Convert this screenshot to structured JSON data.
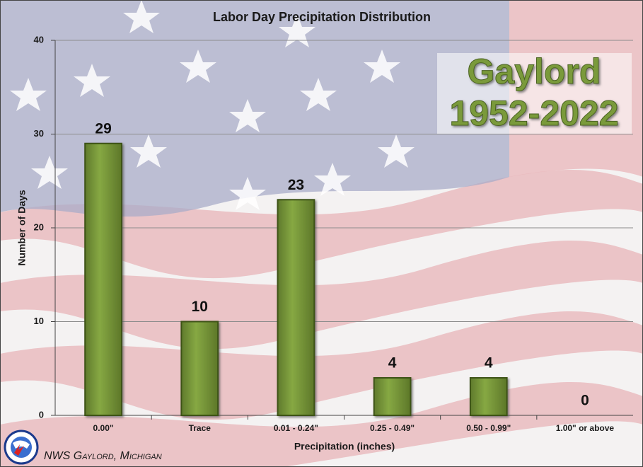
{
  "chart_data": {
    "type": "bar",
    "title": "Labor Day Precipitation Distribution",
    "x_label": "Precipitation (inches)",
    "y_label": "Number of Days",
    "categories": [
      "0.00\"",
      "Trace",
      "0.01 - 0.24\"",
      "0.25 - 0.49\"",
      "0.50 - 0.99\"",
      "1.00\" or above"
    ],
    "values": [
      29,
      10,
      23,
      4,
      4,
      0
    ],
    "color": "#77933c",
    "ylim": [
      0,
      40
    ],
    "yticks": [
      0,
      10,
      20,
      30,
      40
    ],
    "grid": true,
    "annotation": [
      "Gaylord",
      "1952-2022"
    ],
    "credit": "NWS Gaylord, Michigan"
  }
}
